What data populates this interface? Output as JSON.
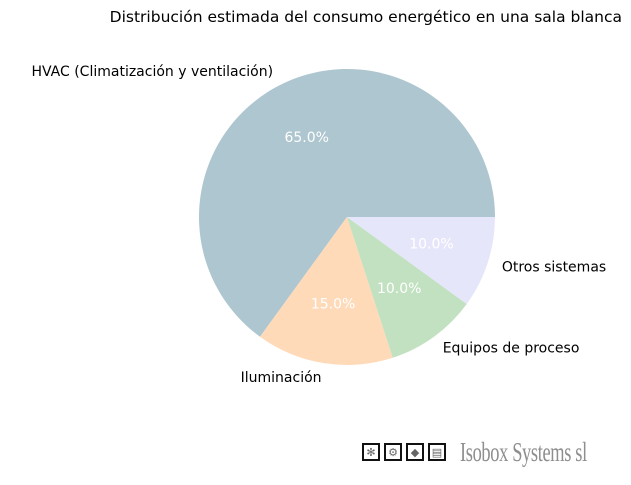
{
  "chart_data": {
    "type": "pie",
    "title": "Distribución estimada del consumo energético en una sala blanca",
    "slices": [
      {
        "label": "HVAC (Climatización y ventilación)",
        "value": 65.0,
        "pct_label": "65.0%",
        "color": "#aec6cf"
      },
      {
        "label": "Iluminación",
        "value": 15.0,
        "pct_label": "15.0%",
        "color": "#ffdab9"
      },
      {
        "label": "Equipos de proceso",
        "value": 10.0,
        "pct_label": "10.0%",
        "color": "#c1e1c1"
      },
      {
        "label": "Otros sistemas",
        "value": 10.0,
        "pct_label": "10.0%",
        "color": "#e6e6fa"
      }
    ],
    "start_angle_deg": 0,
    "direction": "counterclockwise",
    "pct_label_color": "#ffffff"
  },
  "footer": {
    "icons": [
      "fan-icon",
      "gear-icon",
      "droplet-icon",
      "panel-icon"
    ],
    "brand": "Isobox Systems sl"
  }
}
